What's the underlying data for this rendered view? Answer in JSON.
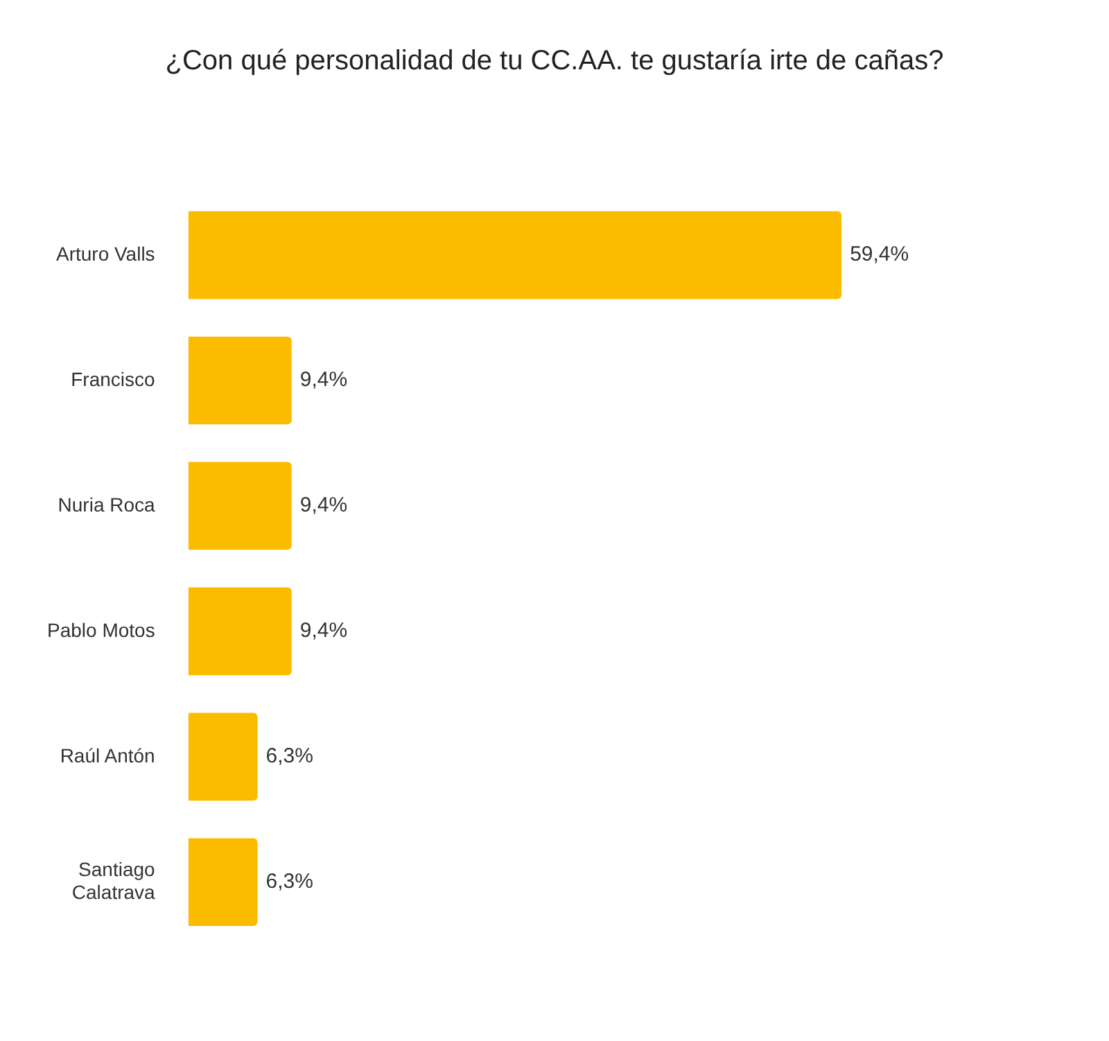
{
  "chart_data": {
    "type": "bar",
    "orientation": "horizontal",
    "title": "¿Con qué personalidad de tu CC.AA. te gustaría irte de cañas?",
    "categories": [
      "Arturo Valls",
      "Francisco",
      "Nuria Roca",
      "Pablo Motos",
      "Raúl Antón",
      "Santiago Calatrava"
    ],
    "values": [
      59.4,
      9.4,
      9.4,
      9.4,
      6.3,
      6.3
    ],
    "value_labels": [
      "59,4%",
      "9,4%",
      "9,4%",
      "9,4%",
      "6,3%",
      "6,3%"
    ],
    "color": "#fbbc00",
    "legend": false
  }
}
